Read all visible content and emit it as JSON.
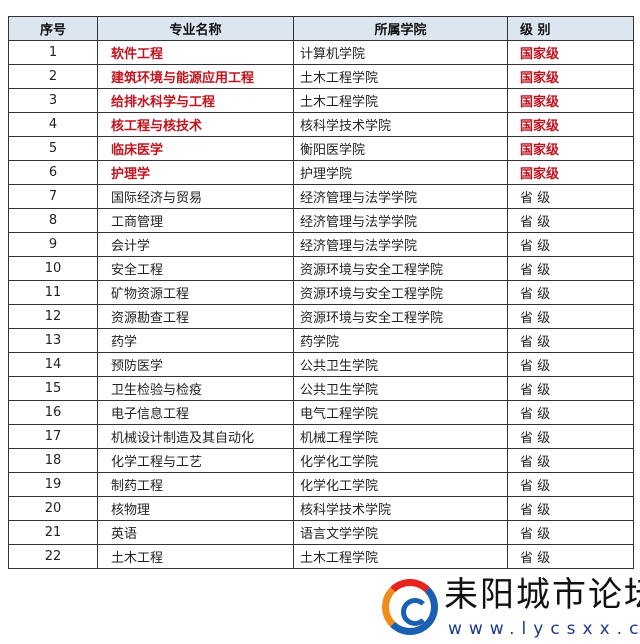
{
  "headers": [
    "序号",
    "专业名称",
    "所属学院",
    "级 别"
  ],
  "rows": [
    [
      "1",
      "软件工程",
      "计算机学院",
      "国家级"
    ],
    [
      "2",
      "建筑环境与能源应用工程",
      "土木工程学院",
      "国家级"
    ],
    [
      "3",
      "给排水科学与工程",
      "土木工程学院",
      "国家级"
    ],
    [
      "4",
      "核工程与核技术",
      "核科学技术学院",
      "国家级"
    ],
    [
      "5",
      "临床医学",
      "衡阳医学院",
      "国家级"
    ],
    [
      "6",
      "护理学",
      "护理学院",
      "国家级"
    ],
    [
      "7",
      "国际经济与贸易",
      "经济管理与法学学院",
      "省 级"
    ],
    [
      "8",
      "工商管理",
      "经济管理与法学学院",
      "省 级"
    ],
    [
      "9",
      "会计学",
      "经济管理与法学学院",
      "省 级"
    ],
    [
      "10",
      "安全工程",
      "资源环境与安全工程学院",
      "省 级"
    ],
    [
      "11",
      "矿物资源工程",
      "资源环境与安全工程学院",
      "省 级"
    ],
    [
      "12",
      "资源勘查工程",
      "资源环境与安全工程学院",
      "省 级"
    ],
    [
      "13",
      "药学",
      "药学院",
      "省 级"
    ],
    [
      "14",
      "预防医学",
      "公共卫生学院",
      "省 级"
    ],
    [
      "15",
      "卫生检验与检疫",
      "公共卫生学院",
      "省 级"
    ],
    [
      "16",
      "电子信息工程",
      "电气工程学院",
      "省 级"
    ],
    [
      "17",
      "机械设计制造及其自动化",
      "机械工程学院",
      "省 级"
    ],
    [
      "18",
      "化学工程与工艺",
      "化学化工学院",
      "省 级"
    ],
    [
      "19",
      "制药工程",
      "化学化工学院",
      "省 级"
    ],
    [
      "20",
      "核物理",
      "核科学技术学院",
      "省 级"
    ],
    [
      "21",
      "英语",
      "语言文学学院",
      "省 级"
    ],
    [
      "22",
      "土木工程",
      "土木工程学院",
      "省 级"
    ]
  ],
  "national_color": "#c0141e",
  "header_bg": "#dce6f1",
  "watermark": {
    "title": "耒阳城市论坛",
    "url": "www.lycsxx.cn"
  }
}
